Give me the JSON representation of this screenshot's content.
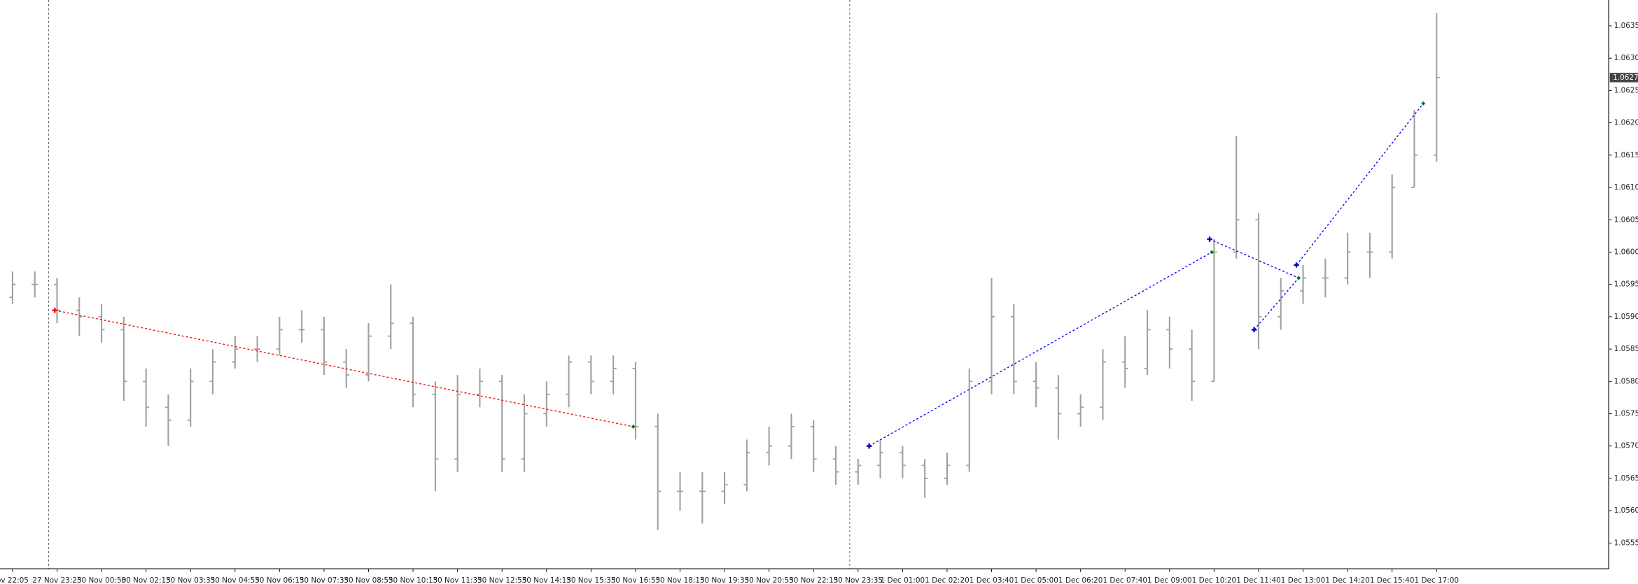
{
  "chart_data": {
    "type": "ohlc",
    "color": "#a0a0a0",
    "categories": [
      "ov 22:05",
      null,
      "27 Nov 23:25",
      null,
      "30 Nov 00:50",
      null,
      "30 Nov 02:15",
      null,
      "30 Nov 03:35",
      null,
      "30 Nov 04:55",
      null,
      "30 Nov 06:15",
      null,
      "30 Nov 07:35",
      null,
      "30 Nov 08:55",
      null,
      "30 Nov 10:15",
      null,
      "30 Nov 11:35",
      null,
      "30 Nov 12:55",
      null,
      "30 Nov 14:15",
      null,
      "30 Nov 15:35",
      null,
      "30 Nov 16:55",
      null,
      "30 Nov 18:15",
      null,
      "30 Nov 19:35",
      null,
      "30 Nov 20:55",
      null,
      "30 Nov 22:15",
      null,
      "30 Nov 23:35",
      null,
      "1 Dec 01:00",
      null,
      "1 Dec 02:20",
      null,
      "1 Dec 03:40",
      null,
      "1 Dec 05:00",
      null,
      "1 Dec 06:20",
      null,
      "1 Dec 07:40",
      null,
      "1 Dec 09:00",
      null,
      "1 Dec 10:20",
      null,
      "1 Dec 11:40",
      null,
      "1 Dec 13:00",
      null,
      "1 Dec 14:20",
      null,
      "1 Dec 15:40",
      null,
      "1 Dec 17:00"
    ],
    "open": [
      1.0593,
      1.0595,
      1.0595,
      1.0591,
      1.059,
      1.0588,
      1.058,
      1.0576,
      1.0574,
      1.058,
      1.0583,
      1.0585,
      1.0585,
      1.0588,
      1.0588,
      1.0583,
      1.0581,
      1.0587,
      1.0589,
      1.0578,
      1.0568,
      1.0578,
      1.058,
      1.0568,
      1.0575,
      1.0578,
      1.0583,
      1.058,
      1.0582,
      1.0573,
      1.0563,
      1.0563,
      1.0563,
      1.0564,
      1.0569,
      1.057,
      1.0573,
      1.0568,
      1.0566,
      1.0567,
      1.0569,
      1.0567,
      1.0565,
      1.0567,
      1.058,
      1.059,
      1.058,
      1.0579,
      1.0575,
      1.0576,
      1.0583,
      1.0582,
      1.0588,
      1.0585,
      1.058,
      1.06,
      1.0605,
      1.059,
      1.0594,
      1.0596,
      1.0596,
      1.06,
      1.06,
      1.061,
      1.0615
    ],
    "high": [
      1.0597,
      1.0597,
      1.0596,
      1.0593,
      1.0592,
      1.059,
      1.0582,
      1.0578,
      1.0582,
      1.0585,
      1.0587,
      1.0587,
      1.059,
      1.0591,
      1.059,
      1.0585,
      1.0589,
      1.0595,
      1.059,
      1.058,
      1.0581,
      1.0582,
      1.0581,
      1.0578,
      1.058,
      1.0584,
      1.0584,
      1.0584,
      1.0583,
      1.0575,
      1.0566,
      1.0566,
      1.0566,
      1.0571,
      1.0573,
      1.0575,
      1.0574,
      1.057,
      1.0568,
      1.0571,
      1.057,
      1.0568,
      1.0569,
      1.0582,
      1.0596,
      1.0592,
      1.0583,
      1.0581,
      1.0578,
      1.0585,
      1.0587,
      1.0591,
      1.059,
      1.0588,
      1.0602,
      1.0618,
      1.0606,
      1.0596,
      1.0598,
      1.0599,
      1.0603,
      1.0603,
      1.0612,
      1.0622,
      1.0637
    ],
    "low": [
      1.0592,
      1.0593,
      1.0589,
      1.0587,
      1.0586,
      1.0577,
      1.0573,
      1.057,
      1.0573,
      1.0578,
      1.0582,
      1.0583,
      1.0584,
      1.0586,
      1.0581,
      1.0579,
      1.058,
      1.0585,
      1.0576,
      1.0563,
      1.0566,
      1.0576,
      1.0566,
      1.0566,
      1.0573,
      1.0576,
      1.0578,
      1.0578,
      1.0571,
      1.0557,
      1.056,
      1.0558,
      1.0561,
      1.0563,
      1.0567,
      1.0568,
      1.0566,
      1.0564,
      1.0564,
      1.0565,
      1.0565,
      1.0562,
      1.0564,
      1.0566,
      1.0578,
      1.0578,
      1.0576,
      1.0571,
      1.0573,
      1.0574,
      1.0579,
      1.0581,
      1.0582,
      1.0577,
      1.058,
      1.0599,
      1.0585,
      1.0588,
      1.0592,
      1.0593,
      1.0595,
      1.0596,
      1.0599,
      1.061,
      1.0614
    ],
    "close": [
      1.0595,
      1.0595,
      1.0591,
      1.059,
      1.0588,
      1.058,
      1.0576,
      1.0574,
      1.058,
      1.0583,
      1.0585,
      1.0585,
      1.0588,
      1.0588,
      1.0583,
      1.0581,
      1.0587,
      1.0589,
      1.0578,
      1.0568,
      1.0578,
      1.058,
      1.0568,
      1.0575,
      1.0578,
      1.0583,
      1.058,
      1.0582,
      1.0573,
      1.0563,
      1.0563,
      1.0563,
      1.0564,
      1.0569,
      1.057,
      1.0573,
      1.0568,
      1.0566,
      1.0567,
      1.0569,
      1.0567,
      1.0565,
      1.0567,
      1.058,
      1.059,
      1.058,
      1.0579,
      1.0575,
      1.0576,
      1.0583,
      1.0582,
      1.0588,
      1.0585,
      1.058,
      1.06,
      1.0605,
      1.059,
      1.0594,
      1.0596,
      1.0596,
      1.06,
      1.06,
      1.061,
      1.0615,
      1.0627
    ],
    "ylim": [
      1.0551,
      1.0639
    ],
    "yticks": [
      1.0555,
      {
        "value": 1.056,
        "label": "1.0560"
      },
      1.0565,
      {
        "value": 1.057,
        "label": "1.0570"
      },
      1.0575,
      {
        "value": 1.058,
        "label": "1.0580"
      },
      1.0585,
      {
        "value": 1.059,
        "label": "1.0590"
      },
      1.0595,
      {
        "value": 1.06,
        "label": "1.0600"
      },
      1.0605,
      {
        "value": 1.061,
        "label": "1.0610"
      },
      1.0615,
      {
        "value": 1.062,
        "label": "1.0620"
      },
      1.0625,
      {
        "value": 1.063,
        "label": "1.0630"
      },
      1.0635
    ],
    "current_price": 1.0627,
    "trades": [
      {
        "color": "#ff0000",
        "open_bar": 1.9,
        "open_price": 1.0591,
        "close_bar": 27.9,
        "close_price": 1.0573
      },
      {
        "color": "#0000ff",
        "open_bar": 38.5,
        "open_price": 1.057,
        "close_bar": 53.9,
        "close_price": 1.06
      },
      {
        "color": "#0000ff",
        "open_bar": 53.8,
        "open_price": 1.0602,
        "close_bar": 57.8,
        "close_price": 1.0596
      },
      {
        "color": "#0000ff",
        "open_bar": 55.8,
        "open_price": 1.0588,
        "close_bar": 57.8,
        "close_price": 1.0596
      },
      {
        "color": "#0000ff",
        "open_bar": 57.7,
        "open_price": 1.0598,
        "close_bar": 63.4,
        "close_price": 1.0623
      }
    ]
  }
}
